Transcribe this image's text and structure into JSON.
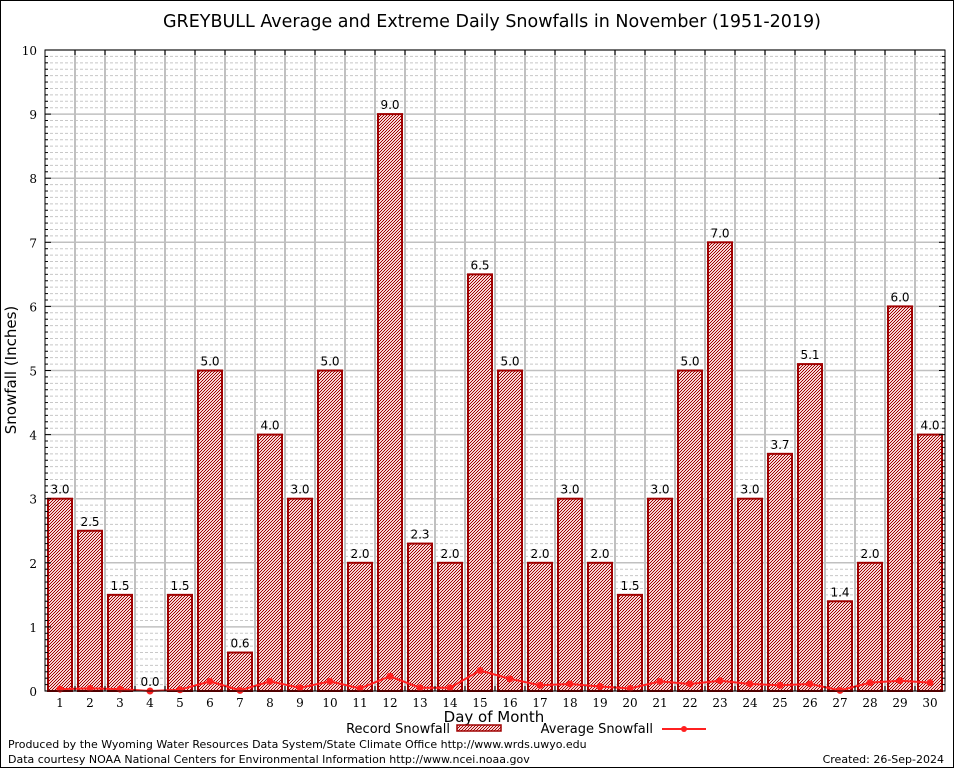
{
  "chart_data": {
    "type": "bar",
    "title": "GREYBULL Average and Extreme Daily Snowfalls in November (1951-2019)",
    "xlabel": "Day of Month",
    "ylabel": "Snowfall (Inches)",
    "ylim": [
      0,
      10
    ],
    "yticks": [
      "0",
      "1",
      "2",
      "3",
      "4",
      "5",
      "6",
      "7",
      "8",
      "9",
      "10"
    ],
    "categories": [
      "1",
      "2",
      "3",
      "4",
      "5",
      "6",
      "7",
      "8",
      "9",
      "10",
      "11",
      "12",
      "13",
      "14",
      "15",
      "16",
      "17",
      "18",
      "19",
      "20",
      "21",
      "22",
      "23",
      "24",
      "25",
      "26",
      "27",
      "28",
      "29",
      "30"
    ],
    "grid": true,
    "legend_position": "bottom",
    "series": [
      {
        "name": "Record Snowfall",
        "kind": "bar",
        "color": "#a00000",
        "values": [
          3.0,
          2.5,
          1.5,
          0.0,
          1.5,
          5.0,
          0.6,
          4.0,
          3.0,
          5.0,
          2.0,
          9.0,
          2.3,
          2.0,
          6.5,
          5.0,
          2.0,
          3.0,
          2.0,
          1.5,
          3.0,
          5.0,
          7.0,
          3.0,
          3.7,
          5.1,
          1.4,
          2.0,
          6.0,
          4.0
        ],
        "labels": [
          "3.0",
          "2.5",
          "1.5",
          "0.0",
          "1.5",
          "5.0",
          "0.6",
          "4.0",
          "3.0",
          "5.0",
          "2.0",
          "9.0",
          "2.3",
          "2.0",
          "6.5",
          "5.0",
          "2.0",
          "3.0",
          "2.0",
          "1.5",
          "3.0",
          "5.0",
          "7.0",
          "3.0",
          "3.7",
          "5.1",
          "1.4",
          "2.0",
          "6.0",
          "4.0"
        ]
      },
      {
        "name": "Average Snowfall",
        "kind": "line",
        "color": "#ff2020",
        "values": [
          0.03,
          0.04,
          0.03,
          0.0,
          0.02,
          0.15,
          0.01,
          0.15,
          0.05,
          0.15,
          0.04,
          0.23,
          0.05,
          0.05,
          0.32,
          0.19,
          0.09,
          0.11,
          0.07,
          0.04,
          0.15,
          0.11,
          0.16,
          0.11,
          0.09,
          0.11,
          0.01,
          0.13,
          0.16,
          0.13
        ]
      }
    ]
  },
  "footer": {
    "produced_by": "Produced by the Wyoming Water Resources Data System/State Climate Office http://www.wrds.uwyo.edu",
    "courtesy": "Data courtesy NOAA National Centers for Environmental Information http://www.ncei.noaa.gov",
    "created": "Created: 26-Sep-2024"
  }
}
